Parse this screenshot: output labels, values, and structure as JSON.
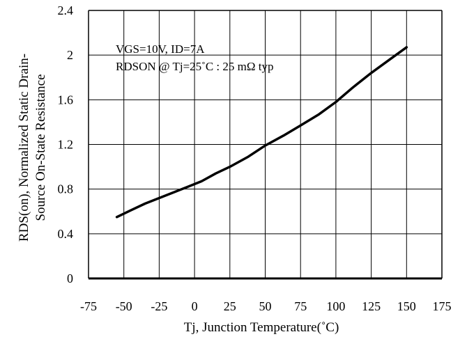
{
  "chart_data": {
    "type": "line",
    "xlabel": "Tj, Junction Temperature(˚C)",
    "ylabel_line1": "RDS(on), Normalized Static Drain-",
    "ylabel_line2": "Source On-State Resistance",
    "xlim": [
      -75,
      175
    ],
    "ylim": [
      0,
      2.4
    ],
    "x_ticks": [
      -75,
      -50,
      -25,
      0,
      25,
      50,
      75,
      100,
      125,
      150,
      175
    ],
    "y_ticks": [
      0,
      0.4,
      0.8,
      1.2,
      1.6,
      2,
      2.4
    ],
    "x_tick_labels": [
      "-75",
      "-50",
      "-25",
      "0",
      "25",
      "50",
      "75",
      "100",
      "125",
      "150",
      "175"
    ],
    "y_tick_labels": [
      "0",
      "0.4",
      "0.8",
      "1.2",
      "1.6",
      "2",
      "2.4"
    ],
    "grid": true,
    "annotations": [
      "VGS=10V, ID=7A",
      "RDSON @ Tj=25˚C : 25 mΩ typ"
    ],
    "series": [
      {
        "x": [
          -55,
          -45,
          -35,
          -25,
          -15,
          -5,
          5,
          15,
          25,
          38,
          50,
          63,
          75,
          88,
          100,
          112,
          125,
          138,
          150
        ],
        "y": [
          0.55,
          0.61,
          0.67,
          0.72,
          0.77,
          0.82,
          0.87,
          0.94,
          1.0,
          1.09,
          1.19,
          1.28,
          1.37,
          1.47,
          1.58,
          1.71,
          1.84,
          1.96,
          2.07
        ]
      }
    ],
    "line_color": "#000000"
  }
}
